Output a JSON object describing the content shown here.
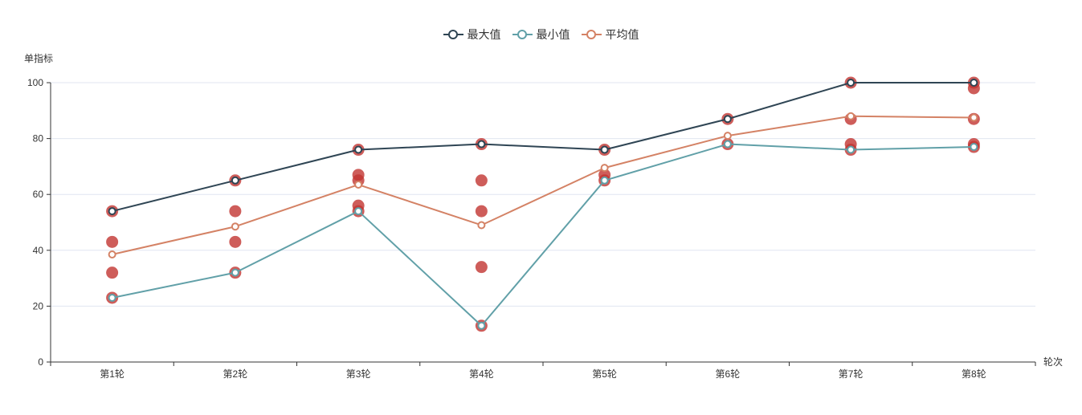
{
  "chart": {
    "y_axis_name": "单指标",
    "x_axis_name": "轮次"
  },
  "chart_data": {
    "type": "line",
    "categories": [
      "第1轮",
      "第2轮",
      "第3轮",
      "第4轮",
      "第5轮",
      "第6轮",
      "第7轮",
      "第8轮"
    ],
    "xlabel": "轮次",
    "ylabel": "单指标",
    "ylim": [
      0,
      100
    ],
    "y_ticks": [
      0,
      20,
      40,
      60,
      80,
      100
    ],
    "grid": true,
    "legend_position": "top-center",
    "series": [
      {
        "name": "最大值",
        "type": "line",
        "color": "#2f4554",
        "values": [
          54,
          65,
          76,
          78,
          76,
          87,
          100,
          100
        ]
      },
      {
        "name": "最小值",
        "type": "line",
        "color": "#61a0a8",
        "values": [
          23,
          32,
          54,
          13,
          65,
          78,
          76,
          77
        ]
      },
      {
        "name": "平均值",
        "type": "line",
        "color": "#d48265",
        "values": [
          38.5,
          48.5,
          63.5,
          49,
          69.5,
          81,
          88,
          87.5
        ]
      }
    ],
    "scatter": {
      "color": "#c23531",
      "opacity": 0.8,
      "points_by_category": [
        [
          54,
          43,
          32,
          23
        ],
        [
          65,
          54,
          43,
          32
        ],
        [
          76,
          67,
          65,
          56,
          54
        ],
        [
          78,
          65,
          54,
          34,
          13
        ],
        [
          76,
          67,
          65
        ],
        [
          87,
          78
        ],
        [
          100,
          87,
          78,
          76
        ],
        [
          100,
          98,
          87,
          78,
          77
        ]
      ]
    },
    "colors": {
      "axis": "#333333",
      "grid": "#e0e6f1",
      "text": "#333333",
      "background": "#ffffff"
    }
  }
}
